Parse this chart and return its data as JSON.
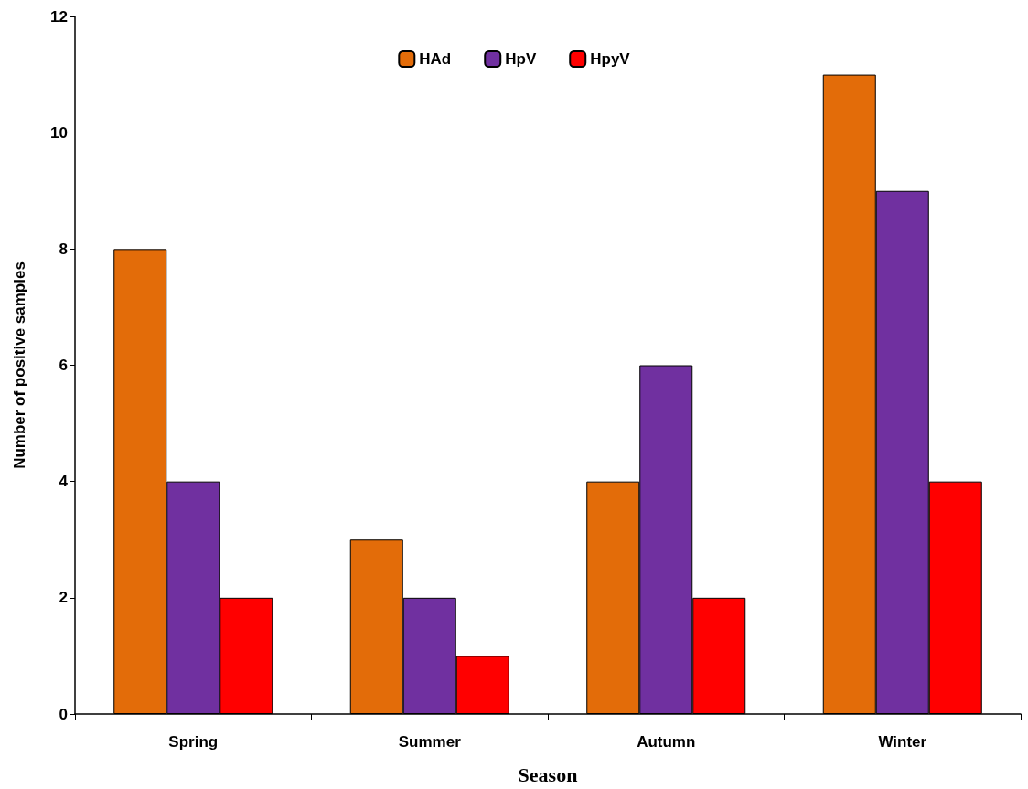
{
  "chart_data": {
    "type": "bar",
    "xlabel": "Season",
    "ylabel": "Number of positive samples",
    "categories": [
      "Spring",
      "Summer",
      "Autumn",
      "Winter"
    ],
    "series": [
      {
        "name": "HAd",
        "color": "#e36c09",
        "values": [
          8,
          3,
          4,
          11
        ]
      },
      {
        "name": "HpV",
        "color": "#7030a0",
        "values": [
          4,
          2,
          6,
          9
        ]
      },
      {
        "name": "HpyV",
        "color": "#ff0000",
        "values": [
          2,
          1,
          2,
          4
        ]
      }
    ],
    "ylim": [
      0,
      12
    ],
    "yticks": [
      0,
      2,
      4,
      6,
      8,
      10,
      12
    ],
    "grid": false,
    "legend": "top"
  }
}
